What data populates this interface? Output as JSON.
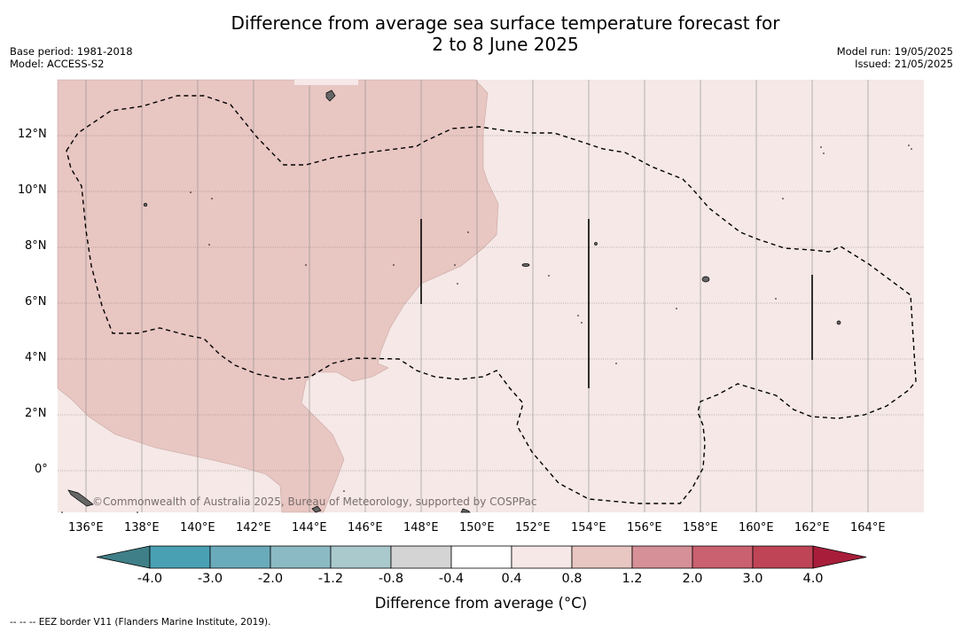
{
  "title_line1": "Difference from average sea surface temperature forecast for",
  "title_line2": "2 to 8 June 2025",
  "meta_left": {
    "base_period": "Base period: 1981-2018",
    "model": "Model: ACCESS-S2"
  },
  "meta_right": {
    "model_run": "Model run: 19/05/2025",
    "issued": "Issued: 21/05/2025"
  },
  "credit": "©Commonwealth of Australia 2025, Bureau of Meteorology, supported by COSPPac",
  "lat_labels": [
    "12°N",
    "10°N",
    "8°N",
    "6°N",
    "4°N",
    "2°N",
    "0°"
  ],
  "lon_labels": [
    "136°E",
    "138°E",
    "140°E",
    "142°E",
    "144°E",
    "146°E",
    "148°E",
    "150°E",
    "152°E",
    "154°E",
    "156°E",
    "158°E",
    "160°E",
    "162°E",
    "164°E"
  ],
  "colorbar": {
    "labels": [
      "-4.0",
      "-3.0",
      "-2.0",
      "-1.2",
      "-0.8",
      "-0.4",
      "0.4",
      "0.8",
      "1.2",
      "2.0",
      "3.0",
      "4.0"
    ],
    "colors": [
      "#4aa0b3",
      "#6aabbb",
      "#8bbac4",
      "#aac9cd",
      "#d4d4d4",
      "#ffffff",
      "#f5e8e6",
      "#e8c6c2",
      "#d69097",
      "#ca6170",
      "#bf4556"
    ],
    "under_color": "#3f7f87",
    "over_color": "#a81e3a",
    "title": "Difference from average (°C)"
  },
  "legend_note": "-- -- -- EEZ border V11 (Flanders Marine Institute, 2019).",
  "map_colors": {
    "band_04_08": "#f5e8e6",
    "band_08_12": "#e8c6c2"
  }
}
